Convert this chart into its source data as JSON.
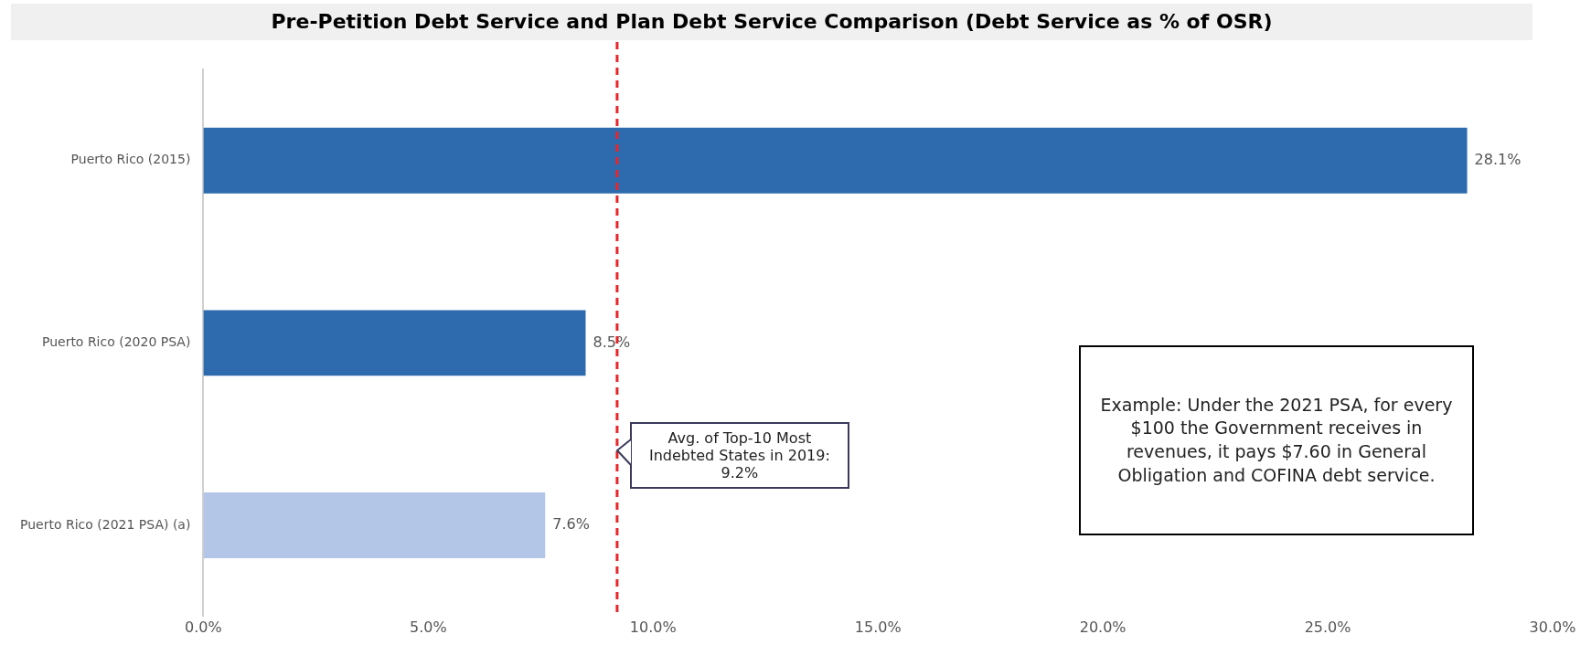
{
  "chart_data": {
    "type": "bar",
    "orientation": "horizontal",
    "title": "Pre-Petition Debt Service and Plan Debt Service Comparison (Debt Service as % of OSR)",
    "categories": [
      "Puerto Rico (2015)",
      "Puerto Rico (2020 PSA)",
      "Puerto Rico (2021 PSA) (a)"
    ],
    "values": [
      28.1,
      8.5,
      7.6
    ],
    "colors": [
      "#2e6bae",
      "#2e6bae",
      "#b4c6e7"
    ],
    "value_labels": [
      "28.1%",
      "8.5%",
      "7.6%"
    ],
    "xlim": [
      0,
      30
    ],
    "xticks": [
      {
        "value": 0,
        "label": "0.0%"
      },
      {
        "value": 5,
        "label": "5.0%"
      },
      {
        "value": 10,
        "label": "10.0%"
      },
      {
        "value": 15,
        "label": "15.0%"
      },
      {
        "value": 20,
        "label": "20.0%"
      },
      {
        "value": 25,
        "label": "25.0%"
      },
      {
        "value": 30,
        "label": "30.0%"
      }
    ],
    "grid": false,
    "legend": false,
    "ref_lines": [
      {
        "axis": "x",
        "value": 9.2,
        "label": "Avg. of Top-10 Most Indebted States in 2019: 9.2%",
        "color": "#e8262a",
        "line_style": "dashed"
      }
    ],
    "annotations": [
      "Example: Under the 2021 PSA, for every $100 the Government receives in revenues, it pays $7.60 in General Obligation and COFINA debt service."
    ]
  }
}
